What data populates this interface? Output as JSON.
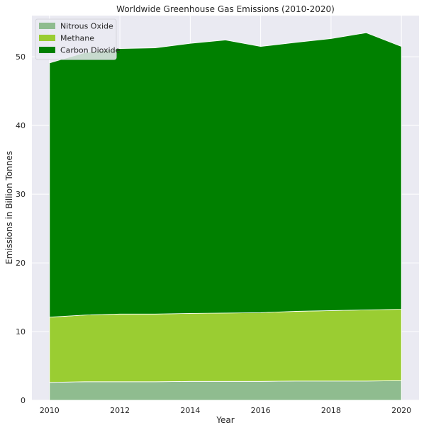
{
  "chart_data": {
    "type": "area",
    "stacked": true,
    "title": "Worldwide Greenhouse Gas Emissions (2010-2020)",
    "xlabel": "Year",
    "ylabel": "Emissions in Billion Tonnes",
    "x": [
      2010,
      2011,
      2012,
      2013,
      2014,
      2015,
      2016,
      2017,
      2018,
      2019,
      2020
    ],
    "xlim": [
      2009.5,
      2020.5
    ],
    "ylim": [
      0,
      56
    ],
    "xticks": [
      2010,
      2012,
      2014,
      2016,
      2018,
      2020
    ],
    "yticks": [
      0,
      10,
      20,
      30,
      40,
      50
    ],
    "grid": true,
    "legend_position": "top-left",
    "series": [
      {
        "name": "Nitrous Oxide",
        "color": "#8fbc8f",
        "values": [
          2.6,
          2.7,
          2.7,
          2.7,
          2.75,
          2.75,
          2.75,
          2.8,
          2.8,
          2.8,
          2.85
        ]
      },
      {
        "name": "Methane",
        "color": "#9acd32",
        "values": [
          9.5,
          9.7,
          9.85,
          9.85,
          9.9,
          9.95,
          10.0,
          10.15,
          10.25,
          10.35,
          10.4
        ]
      },
      {
        "name": "Carbon Dioxide",
        "color": "#008000",
        "values": [
          37.0,
          38.2,
          38.65,
          38.75,
          39.3,
          39.75,
          38.75,
          39.15,
          39.6,
          40.35,
          38.25
        ]
      }
    ]
  }
}
